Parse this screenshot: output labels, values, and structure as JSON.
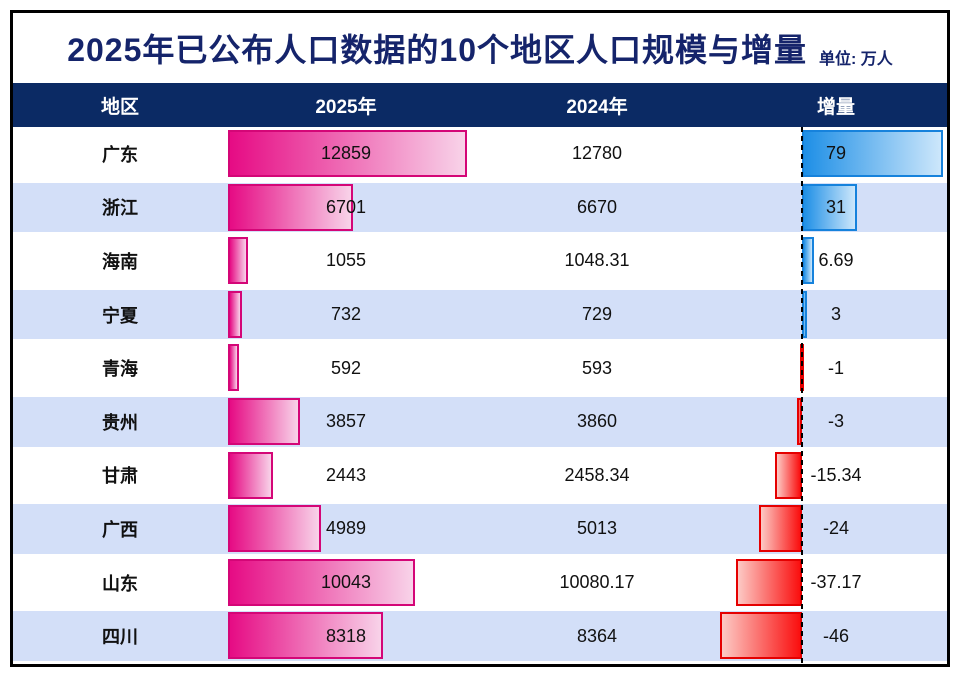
{
  "title": "2025年已公布人口数据的10个地区人口规模与增量",
  "unit_label": "单位: 万人",
  "columns": [
    "地区",
    "2025年",
    "2024年",
    "增量"
  ],
  "colors": {
    "title_navy": "#15246b",
    "header_navy": "#0b2a64",
    "stripe_blue": "#d3dff8",
    "bar_pink": "#e60b84",
    "bar_pink_border": "#d40677",
    "bar_blue": "#1e8fe6",
    "bar_blue_border": "#1682dc",
    "bar_red": "#fa0f0f",
    "bar_red_border": "#e50000",
    "baseline_dash": "#000000"
  },
  "chart_data": {
    "type": "bar",
    "title": "2025年已公布人口数据的10个地区人口规模与增量",
    "unit": "万人",
    "categories": [
      "广东",
      "浙江",
      "海南",
      "宁夏",
      "青海",
      "贵州",
      "甘肃",
      "广西",
      "山东",
      "四川"
    ],
    "series": [
      {
        "name": "2025年",
        "values": [
          12859,
          6701,
          1055,
          732,
          592,
          3857,
          2443,
          4989,
          10043,
          8318
        ]
      },
      {
        "name": "2024年",
        "values": [
          12780,
          6670,
          1048.31,
          729,
          593,
          3860,
          2458.34,
          5013,
          10080.17,
          8364
        ]
      },
      {
        "name": "增量",
        "values": [
          79,
          31,
          6.69,
          3,
          -1,
          -3,
          -15.34,
          -24,
          -37.17,
          -46
        ]
      }
    ],
    "legend_position": "none",
    "grid": false,
    "notes": "2025年 values drawn as pink bars scaled to max 12859; 增量 drawn as diverging bars from dashed zero line: blue = positive (right), red = negative (left)"
  }
}
